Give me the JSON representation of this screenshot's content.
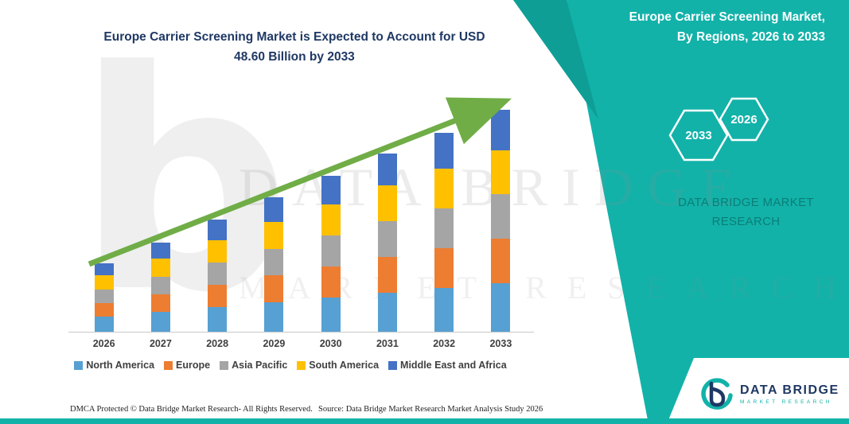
{
  "page": {
    "accent_teal": "#12B2A9",
    "accent_teal_dark": "#0B7E77",
    "accent_teal_dark2": "#0E9E96",
    "navy": "#1F3864",
    "bar_label_color": "#3f3f3f"
  },
  "left": {
    "title_line1": "Europe Carrier Screening Market is Expected to Account for USD",
    "title_line2": "48.60 Billion by 2033"
  },
  "right_panel": {
    "title_line1": "Europe Carrier Screening Market,",
    "title_line2": "By Regions, 2026 to 2033",
    "hex_left_year": "2033",
    "hex_right_year": "2026",
    "brand_line1": "DATA BRIDGE MARKET",
    "brand_line2": "RESEARCH"
  },
  "watermark": {
    "letter": "b",
    "line1": "DATA BRIDGE",
    "line2": "MARKET RESEARCH"
  },
  "logo": {
    "name": "DATA BRIDGE",
    "tagline": "MARKET RESEARCH"
  },
  "footer": {
    "dmca": "DMCA Protected © Data Bridge Market Research-  All Rights Reserved.",
    "source": "Source: Data Bridge Market Research  Market Analysis Study 2026"
  },
  "chart_data": {
    "type": "bar",
    "stacked": true,
    "title": "Europe Carrier Screening Market is Expected to Account for USD 48.60 Billion by 2033",
    "categories": [
      "2026",
      "2027",
      "2028",
      "2029",
      "2030",
      "2031",
      "2032",
      "2033"
    ],
    "series": [
      {
        "name": "North America",
        "color": "#56A0D3",
        "values": [
          3.3,
          4.3,
          5.4,
          6.4,
          7.5,
          8.6,
          9.6,
          10.7
        ]
      },
      {
        "name": "Europe",
        "color": "#ED7D31",
        "values": [
          3.0,
          3.9,
          4.9,
          5.9,
          6.8,
          7.8,
          8.7,
          9.7
        ]
      },
      {
        "name": "Asia Pacific",
        "color": "#A5A5A5",
        "values": [
          3.0,
          3.9,
          4.9,
          5.9,
          6.8,
          7.8,
          8.7,
          9.7
        ]
      },
      {
        "name": "South America",
        "color": "#FFC000",
        "values": [
          3.0,
          3.9,
          4.9,
          5.9,
          6.8,
          7.8,
          8.7,
          9.7
        ]
      },
      {
        "name": "Middle East and Africa",
        "color": "#4472C4",
        "values": [
          2.7,
          3.5,
          4.4,
          5.3,
          6.2,
          7.0,
          7.9,
          8.8
        ]
      }
    ],
    "totals": [
      15.0,
      19.5,
      24.5,
      29.4,
      34.1,
      39.0,
      43.6,
      48.6
    ],
    "ylim": [
      0,
      50
    ],
    "grid": false,
    "legend_position": "bottom",
    "trend_arrow": true,
    "trend_arrow_color": "#70AD47"
  }
}
